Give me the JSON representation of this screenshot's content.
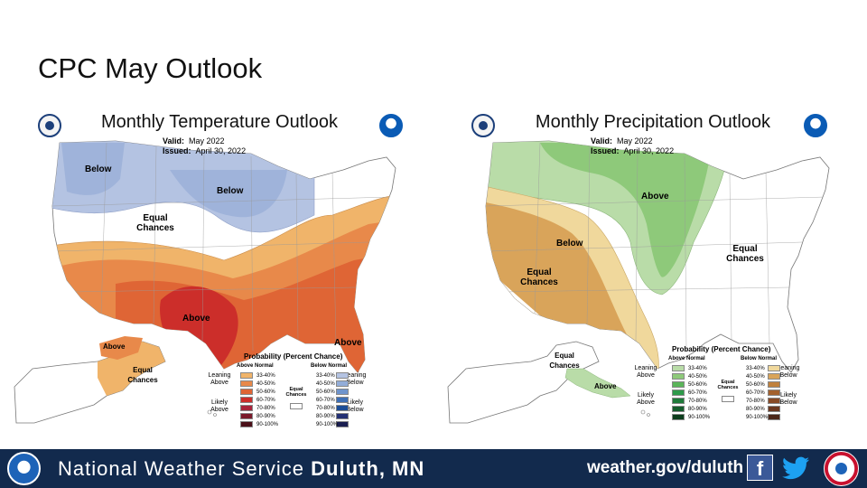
{
  "slide": {
    "title": "CPC May Outlook"
  },
  "temperature_map": {
    "title": "Monthly Temperature Outlook",
    "valid_label": "Valid:",
    "valid_value": "May 2022",
    "issued_label": "Issued:",
    "issued_value": "April 30, 2022",
    "regions": {
      "below_nw": "Below",
      "below_north": "Below",
      "equal_chances": "Equal Chances",
      "above_south": "Above",
      "above_se": "Above",
      "above_alaska": "Above",
      "equal_chances_alaska": "Equal Chances"
    },
    "colors": {
      "below_normal": "#b4c3e2",
      "above_33_40": "#f0b46a",
      "above_40_50": "#e8894a",
      "above_50_60": "#df6535",
      "above_60_70": "#cc2e2a"
    }
  },
  "precipitation_map": {
    "title": "Monthly Precipitation Outlook",
    "valid_label": "Valid:",
    "valid_value": "May 2022",
    "issued_label": "Issued:",
    "issued_value": "April 30, 2022",
    "regions": {
      "above": "Above",
      "below": "Below",
      "equal_chances_west": "Equal Chances",
      "equal_chances_east": "Equal Chances",
      "equal_chances_alaska": "Equal Chances",
      "above_alaska": "Above"
    },
    "colors": {
      "above_33_40": "#b9dca8",
      "above_40_50": "#8ec97a",
      "below_33_40": "#f0d89c",
      "below_40_50": "#d9a45a"
    }
  },
  "temperature_legend": {
    "title": "Probability (Percent Chance)",
    "above_normal": "Above Normal",
    "below_normal": "Below Normal",
    "leaning_above": "Leaning Above",
    "likely_above": "Likely Above",
    "leaning_below": "Leaning Below",
    "likely_below": "Likely Below",
    "equal_chances": "Equal Chances",
    "ranges": [
      "33-40%",
      "40-50%",
      "50-60%",
      "60-70%",
      "70-80%",
      "80-90%",
      "90-100%"
    ],
    "above_colors": [
      "#f0b46a",
      "#e8894a",
      "#df6535",
      "#cc2e2a",
      "#a8243b",
      "#7a1a2a",
      "#4a0f18"
    ],
    "below_colors": [
      "#b4c3e2",
      "#93add8",
      "#6f94cc",
      "#3e6fb5",
      "#1b4d97",
      "#233074",
      "#1a1e50"
    ]
  },
  "precipitation_legend": {
    "title": "Probability (Percent Chance)",
    "above_normal": "Above Normal",
    "below_normal": "Below Normal",
    "leaning_above": "Leaning Above",
    "likely_above": "Likely Above",
    "leaning_below": "Leaning Below",
    "likely_below": "Likely Below",
    "equal_chances": "Equal Chances",
    "ranges": [
      "33-40%",
      "40-50%",
      "50-60%",
      "60-70%",
      "70-80%",
      "80-90%",
      "90-100%"
    ],
    "above_colors": [
      "#b9dca8",
      "#8ec97a",
      "#5bb55a",
      "#2e9a4a",
      "#1f7a3a",
      "#155c2c",
      "#0c3d1c"
    ],
    "below_colors": [
      "#f0d89c",
      "#d9a45a",
      "#c0813d",
      "#a3612e",
      "#874a26",
      "#6b3820",
      "#4b2618"
    ]
  },
  "footer": {
    "org_prefix": "National Weather Service",
    "org_office": "Duluth, MN",
    "url": "weather.gov/duluth",
    "facebook_icon": "facebook-icon",
    "twitter_icon": "twitter-icon",
    "colors": {
      "background": "#122a4d",
      "text": "#ffffff"
    }
  }
}
